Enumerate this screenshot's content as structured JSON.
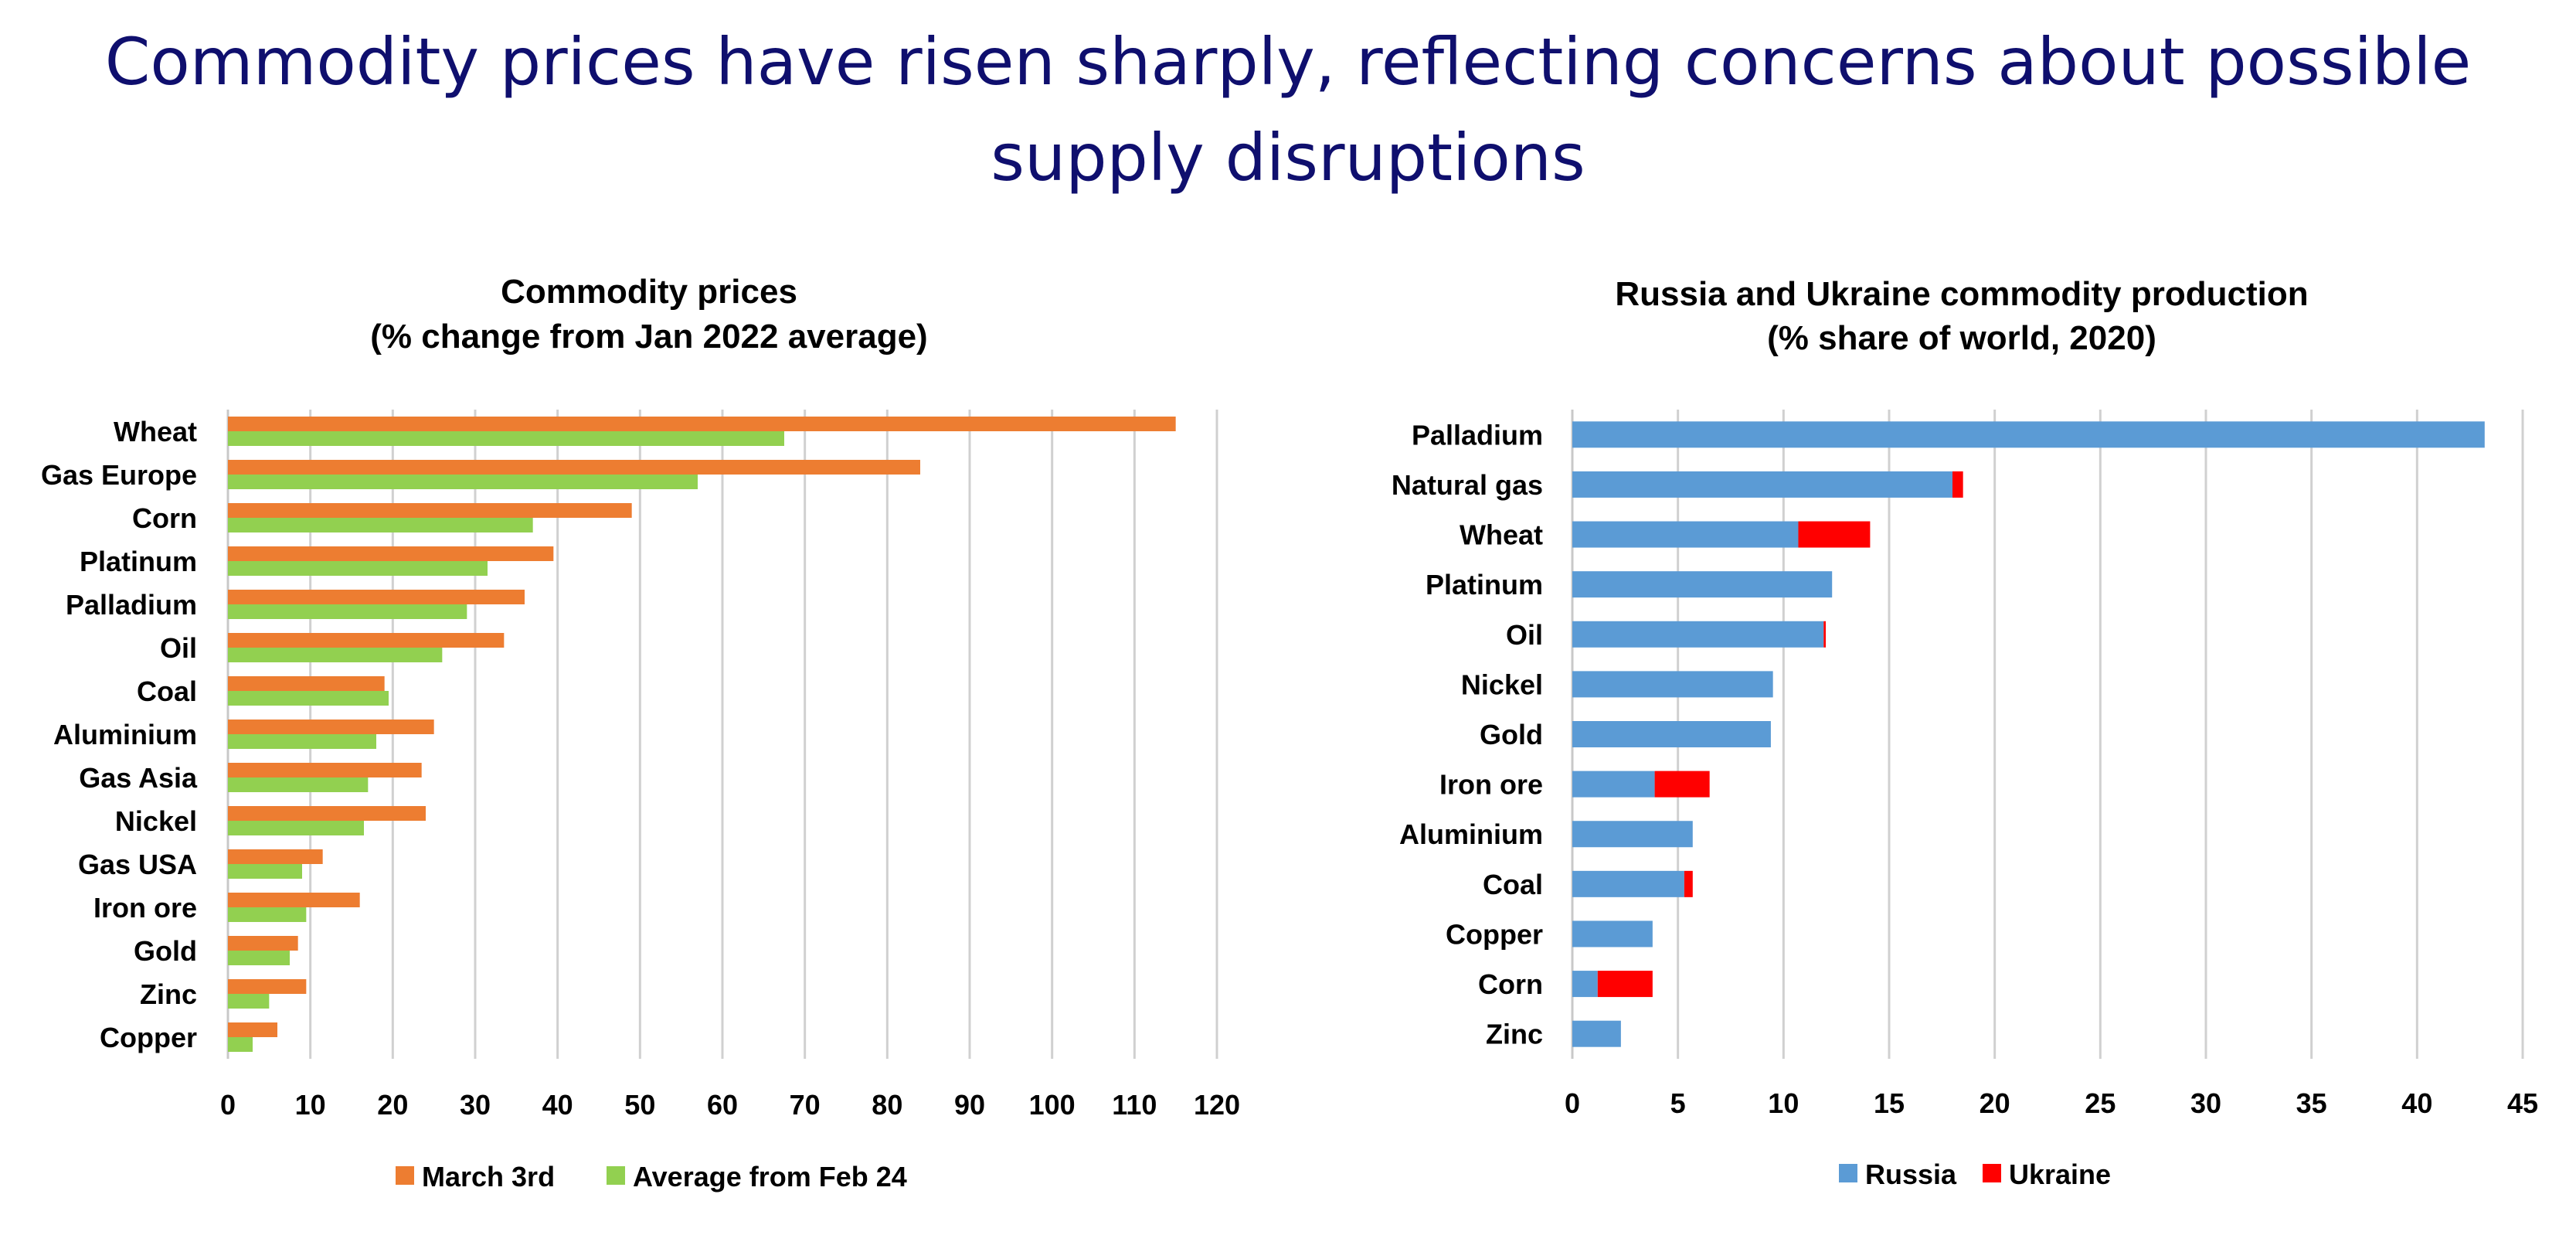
{
  "slide": {
    "title_line1": "Commodity prices have risen sharply, reflecting concerns about possible",
    "title_line2": "supply disruptions"
  },
  "chart_data": [
    {
      "type": "bar",
      "orientation": "horizontal",
      "title_line1": "Commodity prices",
      "title_line2": "(% change from Jan 2022 average)",
      "categories": [
        "Wheat",
        "Gas Europe",
        "Corn",
        "Platinum",
        "Palladium",
        "Oil",
        "Coal",
        "Aluminium",
        "Gas Asia",
        "Nickel",
        "Gas USA",
        "Iron ore",
        "Gold",
        "Zinc",
        "Copper"
      ],
      "series": [
        {
          "name": "March 3rd",
          "color": "#ed7d31",
          "values": [
            115,
            84,
            49,
            39.5,
            36,
            33.5,
            19,
            25,
            23.5,
            24,
            11.5,
            16,
            8.5,
            9.5,
            6
          ]
        },
        {
          "name": "Average from Feb 24",
          "color": "#92d050",
          "values": [
            67.5,
            57,
            37,
            31.5,
            29,
            26,
            19.5,
            18,
            17,
            16.5,
            9,
            9.5,
            7.5,
            5,
            3
          ]
        }
      ],
      "xlim": [
        0,
        120
      ],
      "xticks": [
        0,
        10,
        20,
        30,
        40,
        50,
        60,
        70,
        80,
        90,
        100,
        110,
        120
      ],
      "grid": true,
      "legend_position": "bottom"
    },
    {
      "type": "bar",
      "orientation": "horizontal",
      "stacked": true,
      "title_line1": "Russia and Ukraine commodity production",
      "title_line2": "(% share of world, 2020)",
      "categories": [
        "Palladium",
        "Natural gas",
        "Wheat",
        "Platinum",
        "Oil",
        "Nickel",
        "Gold",
        "Iron ore",
        "Aluminium",
        "Coal",
        "Copper",
        "Corn",
        "Zinc"
      ],
      "series": [
        {
          "name": "Russia",
          "color": "#5b9bd5",
          "values": [
            43.2,
            18,
            10.7,
            12.3,
            11.9,
            9.5,
            9.4,
            3.9,
            5.7,
            5.3,
            3.8,
            1.2,
            2.3
          ]
        },
        {
          "name": "Ukraine",
          "color": "#ff0000",
          "values": [
            0,
            0.5,
            3.4,
            0,
            0.1,
            0,
            0,
            2.6,
            0,
            0.4,
            0,
            2.6,
            0
          ]
        }
      ],
      "xlim": [
        0,
        45
      ],
      "xticks": [
        0,
        5,
        10,
        15,
        20,
        25,
        30,
        35,
        40,
        45
      ],
      "grid": true,
      "legend_position": "bottom"
    }
  ]
}
